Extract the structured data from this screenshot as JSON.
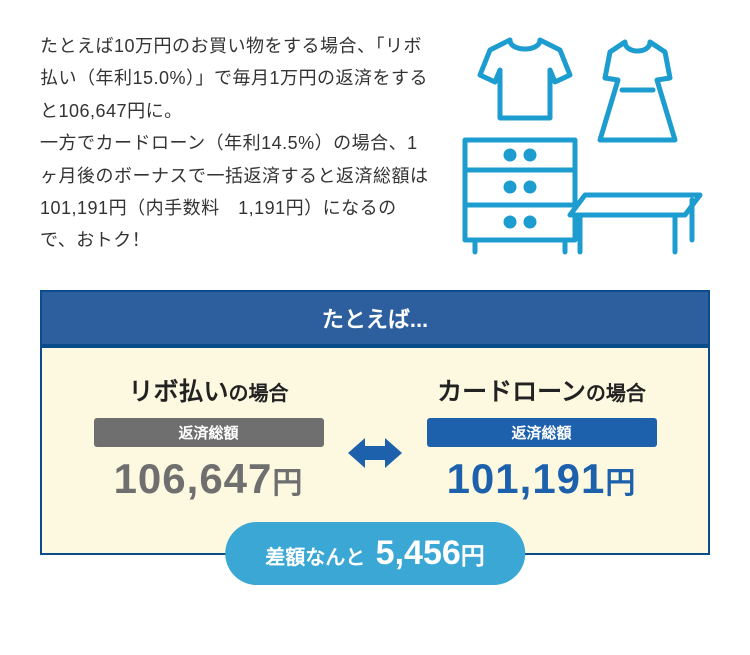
{
  "colors": {
    "accent_blue": "#1d9cd0",
    "dark_blue": "#0b4d8c",
    "header_bg": "#2d5e9e",
    "body_bg": "#fdf8e0",
    "revo_gray": "#6f6f6f",
    "revo_amount": "#6f6f6f",
    "loan_blue": "#1d60ac",
    "loan_amount": "#1d60ac",
    "badge_blue": "#3ba7d4",
    "arrow_blue": "#1d60ac",
    "illustration_stroke": "#1d9cd0"
  },
  "description": "たとえば10万円のお買い物をする場合、「リボ払い（年利15.0%）」で毎月1万円の返済をすると106,647円に。\n一方でカードローン（年利14.5%）の場合、1ヶ月後のボーナスで一括返済すると返済総額は101,191円（内手数料　1,191円）になるので、おトク！",
  "comparison": {
    "header": "たとえば...",
    "left": {
      "title_big": "リボ払い",
      "title_small": "の場合",
      "repay_label": "返済総額",
      "amount": "106,647",
      "yen": "円"
    },
    "right": {
      "title_big": "カードローン",
      "title_small": "の場合",
      "repay_label": "返済総額",
      "amount": "101,191",
      "yen": "円"
    },
    "difference": {
      "label": "差額なんと",
      "amount": "5,456",
      "yen": "円"
    }
  }
}
